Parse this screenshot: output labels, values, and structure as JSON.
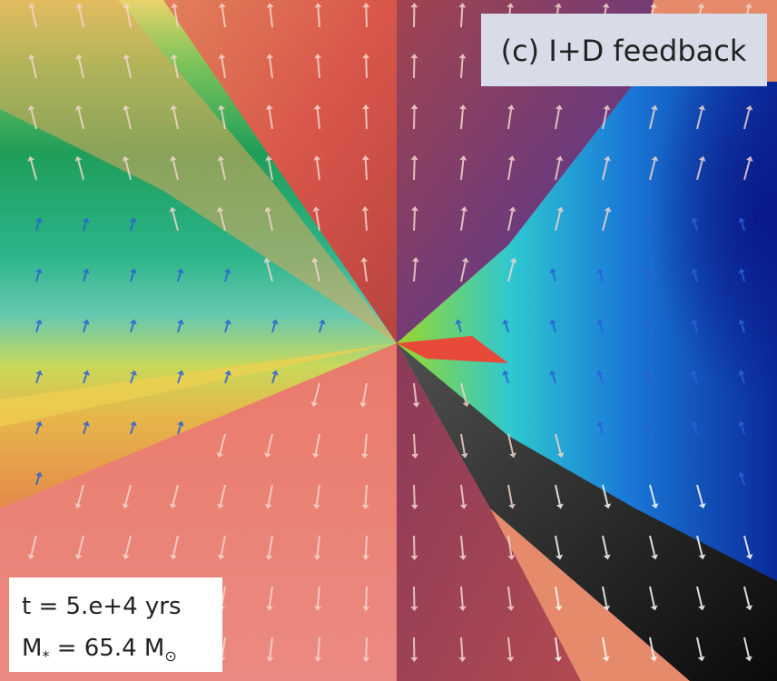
{
  "panel_label": "(c) I+D feedback",
  "info": {
    "time": "t = 5.e+4 yrs",
    "mass": {
      "symbol": "M",
      "symbol_sub": "*",
      "middle": " = 65.4 M",
      "unit_sub": "⊙"
    }
  }
}
